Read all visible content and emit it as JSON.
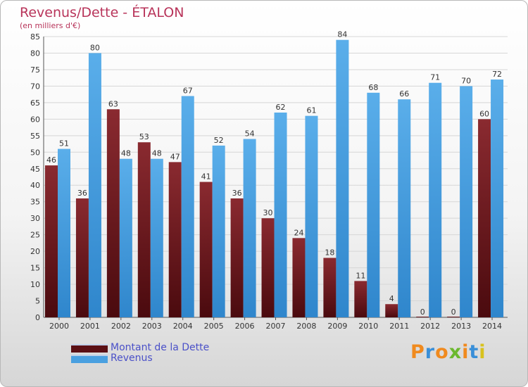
{
  "title": "Revenus/Dette - ÉTALON",
  "subtitle": "(en milliers d'€)",
  "brand": "Proxiti",
  "brand_colors": [
    "#f08a1e",
    "#3a8fd8",
    "#f08a1e",
    "#6bb82e",
    "#f08a1e",
    "#3a8fd8",
    "#d8c21e"
  ],
  "colors": {
    "title": "#b8345a",
    "debt_top": "#8a2a30",
    "debt_bottom": "#4a0a0e",
    "revenue_top": "#5aaeea",
    "revenue_bottom": "#2f86cc",
    "legend_text": "#4a50c8"
  },
  "chart_data": {
    "type": "bar",
    "title": "Revenus/Dette - ÉTALON",
    "subtitle": "(en milliers d'€)",
    "categories": [
      "2000",
      "2001",
      "2002",
      "2003",
      "2004",
      "2005",
      "2006",
      "2007",
      "2008",
      "2009",
      "2010",
      "2011",
      "2012",
      "2013",
      "2014"
    ],
    "series": [
      {
        "name": "Montant de la Dette",
        "values": [
          46,
          36,
          63,
          53,
          47,
          41,
          36,
          30,
          24,
          18,
          11,
          4,
          0,
          0,
          60
        ]
      },
      {
        "name": "Revenus",
        "values": [
          51,
          80,
          48,
          48,
          67,
          52,
          54,
          62,
          61,
          84,
          68,
          66,
          71,
          70,
          72
        ]
      }
    ],
    "ylim": [
      0,
      85
    ],
    "ytick_step": 5,
    "grid": true,
    "legend_placement": "bottom-left"
  }
}
